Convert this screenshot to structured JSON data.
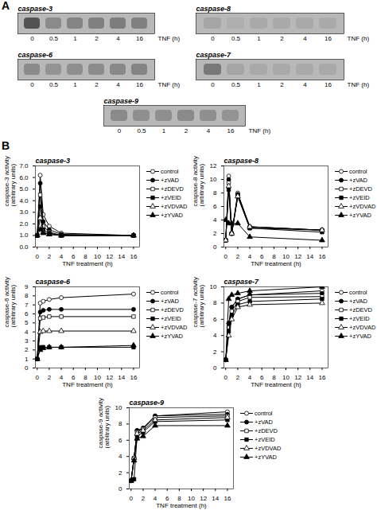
{
  "chart_data": [
    {
      "type": "blot",
      "title": "caspase-3",
      "categories": [
        "0",
        "0.5",
        "1",
        "2",
        "4",
        "16"
      ],
      "values": [
        0.55,
        0.25,
        0.28,
        0.3,
        0.32,
        0.3
      ],
      "xlabel": "TNF (h)",
      "color": "#b8b8b8",
      "annotations": [
        {
          "text": "A"
        }
      ]
    },
    {
      "type": "blot",
      "title": "caspase-8",
      "categories": [
        "0",
        "0.5",
        "1",
        "2",
        "4",
        "16"
      ],
      "values": [
        0.1,
        0.05,
        0.08,
        0.08,
        0.08,
        0.08
      ],
      "xlabel": "TNF (h)",
      "color": "#b8b8b8"
    },
    {
      "type": "blot",
      "title": "caspase-6",
      "categories": [
        "0",
        "0.5",
        "1",
        "2",
        "4",
        "16"
      ],
      "values": [
        0.25,
        0.2,
        0.22,
        0.24,
        0.26,
        0.28
      ],
      "xlabel": "TNF (h)",
      "color": "#b8b8b8"
    },
    {
      "type": "blot",
      "title": "caspase-7",
      "categories": [
        "0",
        "0.5",
        "1",
        "2",
        "4",
        "16"
      ],
      "values": [
        0.35,
        0.1,
        0.08,
        0.08,
        0.08,
        0.08
      ],
      "xlabel": "TNF (h)",
      "color": "#b8b8b8"
    },
    {
      "type": "blot",
      "title": "caspase-9",
      "categories": [
        "0",
        "0.5",
        "1",
        "2",
        "4",
        "16"
      ],
      "values": [
        0.25,
        0.22,
        0.22,
        0.25,
        0.22,
        0.2
      ],
      "xlabel": "TNF (h)",
      "color": "#b8b8b8"
    },
    {
      "type": "line",
      "title": "caspase-3",
      "annotations": [
        {
          "text": "B"
        }
      ],
      "x": [
        0,
        0.5,
        1,
        2,
        4,
        16
      ],
      "xlabel": "TNF treatment (h)",
      "ylabel": "caspase-3 activity\n(arbitrary units)",
      "xlim": [
        -0.3,
        17
      ],
      "xticks": [
        0,
        2,
        4,
        6,
        8,
        10,
        12,
        14,
        16
      ],
      "ylim": [
        0,
        7
      ],
      "yticks": [
        0,
        1,
        2,
        3,
        4,
        5,
        6,
        7
      ],
      "legend": "right",
      "series": [
        {
          "name": "control",
          "color": "black",
          "marker": "circle-open",
          "values": [
            1.0,
            6.2,
            2.8,
            1.8,
            1.2,
            1.0
          ]
        },
        {
          "name": "+zVAD",
          "color": "black",
          "marker": "circle",
          "values": [
            1.0,
            5.5,
            2.2,
            1.5,
            1.1,
            1.0
          ]
        },
        {
          "name": "+zDEVD",
          "color": "black",
          "marker": "square-open",
          "values": [
            1.0,
            4.5,
            1.8,
            1.3,
            1.0,
            1.0
          ]
        },
        {
          "name": "+zVEID",
          "color": "black",
          "marker": "square",
          "values": [
            1.0,
            3.5,
            1.5,
            1.2,
            1.0,
            1.0
          ]
        },
        {
          "name": "+zVDVAD",
          "color": "black",
          "marker": "triangle-open",
          "values": [
            1.0,
            2.5,
            1.3,
            1.1,
            1.0,
            1.0
          ]
        },
        {
          "name": "+zYVAD",
          "color": "black",
          "marker": "triangle",
          "values": [
            1.0,
            1.5,
            1.2,
            1.1,
            1.0,
            1.0
          ]
        }
      ]
    },
    {
      "type": "line",
      "title": "caspase-8",
      "x": [
        0,
        0.5,
        1,
        2,
        4,
        16
      ],
      "xlabel": "TNF treatment (h)",
      "ylabel": "caspase-8 activity\n(arbitrary units)",
      "xlim": [
        -0.3,
        17
      ],
      "xticks": [
        0,
        2,
        4,
        6,
        8,
        10,
        12,
        14,
        16
      ],
      "ylim": [
        0,
        12
      ],
      "yticks": [
        0,
        2,
        4,
        6,
        8,
        10,
        12
      ],
      "legend": "right",
      "series": [
        {
          "name": "control",
          "color": "black",
          "marker": "circle-open",
          "values": [
            1.0,
            10.5,
            2.0,
            8.0,
            3.0,
            2.5
          ]
        },
        {
          "name": "+zVAD",
          "color": "black",
          "marker": "circle",
          "values": [
            1.0,
            10.0,
            2.0,
            7.8,
            3.0,
            2.5
          ]
        },
        {
          "name": "+zDEVD",
          "color": "black",
          "marker": "square-open",
          "values": [
            1.0,
            9.5,
            2.0,
            7.5,
            2.8,
            2.5
          ]
        },
        {
          "name": "+zVEID",
          "color": "black",
          "marker": "square",
          "values": [
            1.0,
            8.5,
            2.0,
            7.5,
            2.8,
            2.2
          ]
        },
        {
          "name": "+zVDVAD",
          "color": "black",
          "marker": "triangle-open",
          "values": [
            1.0,
            9.0,
            2.0,
            7.5,
            3.0,
            2.5
          ]
        },
        {
          "name": "+zYVAD",
          "color": "black",
          "marker": "triangle",
          "values": [
            4.0,
            3.5,
            3.5,
            3.5,
            1.5,
            1.0
          ]
        }
      ]
    },
    {
      "type": "line",
      "title": "caspase-6",
      "x": [
        0,
        0.5,
        1,
        2,
        4,
        16
      ],
      "xlabel": "TNF treatment (h)",
      "ylabel": "caspase-6 activity\n(arbitrary units)",
      "xlim": [
        -0.3,
        17
      ],
      "xticks": [
        0,
        2,
        4,
        6,
        8,
        10,
        12,
        14,
        16
      ],
      "ylim": [
        0,
        9
      ],
      "yticks": [
        0,
        1,
        2,
        3,
        4,
        5,
        6,
        7,
        8,
        9
      ],
      "legend": "right",
      "series": [
        {
          "name": "control",
          "color": "black",
          "marker": "circle-open",
          "values": [
            1.0,
            7.2,
            7.4,
            7.6,
            7.8,
            8.2
          ]
        },
        {
          "name": "+zVAD",
          "color": "black",
          "marker": "circle",
          "values": [
            1.0,
            6.2,
            6.4,
            6.5,
            6.5,
            6.5
          ]
        },
        {
          "name": "+zDEVD",
          "color": "black",
          "marker": "square-open",
          "values": [
            1.0,
            5.5,
            5.6,
            5.7,
            5.7,
            5.7
          ]
        },
        {
          "name": "+zVEID",
          "color": "black",
          "marker": "square",
          "values": [
            1.0,
            2.3,
            2.3,
            2.3,
            2.3,
            2.3
          ]
        },
        {
          "name": "+zVDVAD",
          "color": "black",
          "marker": "triangle-open",
          "values": [
            1.0,
            4.0,
            4.1,
            4.1,
            4.1,
            4.1
          ]
        },
        {
          "name": "+zYVAD",
          "color": "black",
          "marker": "triangle",
          "values": [
            1.0,
            2.0,
            2.2,
            2.3,
            2.3,
            2.5
          ]
        }
      ]
    },
    {
      "type": "line",
      "title": "caspase-7",
      "x": [
        0,
        0.5,
        1,
        2,
        4,
        16
      ],
      "xlabel": "TNF treatment (h)",
      "ylabel": "caspase-7 activity\n(arbitrary units)",
      "xlim": [
        -0.3,
        17
      ],
      "xticks": [
        0,
        2,
        4,
        6,
        8,
        10,
        12,
        14,
        16
      ],
      "ylim": [
        0,
        10
      ],
      "yticks": [
        0,
        2,
        4,
        6,
        8,
        10
      ],
      "legend": "right",
      "series": [
        {
          "name": "control",
          "color": "black",
          "marker": "circle-open",
          "values": [
            1.0,
            5.5,
            7.5,
            8.5,
            9.0,
            9.5
          ]
        },
        {
          "name": "+zVAD",
          "color": "black",
          "marker": "circle",
          "values": [
            1.0,
            5.5,
            7.5,
            8.5,
            9.0,
            9.2
          ]
        },
        {
          "name": "+zDEVD",
          "color": "black",
          "marker": "square-open",
          "values": [
            1.0,
            5.0,
            7.0,
            8.2,
            8.7,
            8.8
          ]
        },
        {
          "name": "+zVEID",
          "color": "black",
          "marker": "square",
          "values": [
            1.0,
            4.5,
            6.5,
            7.8,
            8.2,
            8.5
          ]
        },
        {
          "name": "+zVDVAD",
          "color": "black",
          "marker": "triangle-open",
          "values": [
            1.0,
            4.0,
            6.0,
            7.5,
            7.8,
            8.0
          ]
        },
        {
          "name": "+zYVAD",
          "color": "black",
          "marker": "triangle",
          "values": [
            1.0,
            8.5,
            9.0,
            9.2,
            9.5,
            10.0
          ]
        }
      ]
    },
    {
      "type": "line",
      "title": "caspase-9",
      "x": [
        0,
        0.5,
        1,
        2,
        4,
        16
      ],
      "xlabel": "TNF treatment (h)",
      "ylabel": "caspase-9 activity\n(arbitrary units)",
      "xlim": [
        -0.3,
        17
      ],
      "xticks": [
        0,
        2,
        4,
        6,
        8,
        10,
        12,
        14,
        16
      ],
      "ylim": [
        0,
        10
      ],
      "yticks": [
        0,
        2,
        4,
        6,
        8,
        10
      ],
      "legend": "right",
      "series": [
        {
          "name": "control",
          "color": "black",
          "marker": "circle-open",
          "values": [
            1.0,
            3.8,
            7.2,
            7.5,
            9.0,
            9.5
          ]
        },
        {
          "name": "+zVAD",
          "color": "black",
          "marker": "circle",
          "values": [
            1.0,
            3.8,
            7.2,
            7.5,
            9.0,
            9.2
          ]
        },
        {
          "name": "+zDEVD",
          "color": "black",
          "marker": "square-open",
          "values": [
            1.0,
            3.8,
            7.0,
            7.4,
            8.8,
            9.0
          ]
        },
        {
          "name": "+zVEID",
          "color": "black",
          "marker": "square",
          "values": [
            1.0,
            1.2,
            6.5,
            7.0,
            8.3,
            8.5
          ]
        },
        {
          "name": "+zVDVAD",
          "color": "black",
          "marker": "triangle-open",
          "values": [
            1.0,
            3.8,
            6.8,
            7.2,
            8.5,
            8.8
          ]
        },
        {
          "name": "+zYVAD",
          "color": "black",
          "marker": "triangle",
          "values": [
            1.0,
            3.5,
            6.2,
            6.5,
            7.8,
            7.8
          ]
        }
      ]
    }
  ]
}
